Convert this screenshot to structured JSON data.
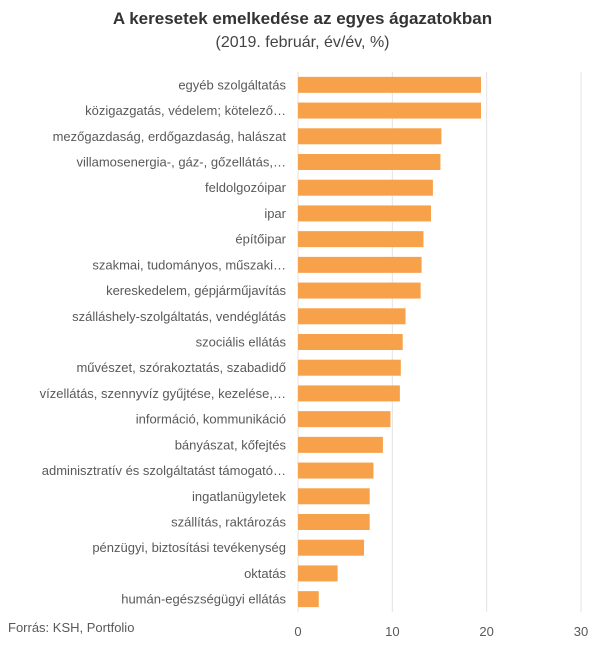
{
  "header": {
    "title": "A keresetek emelkedése az egyes ágazatokban",
    "subtitle": "(2019. február, év/év, %)"
  },
  "footer": {
    "source": "Forrás: KSH, Portfolio"
  },
  "colors": {
    "bar": "#F7A14A",
    "grid": "#E3E3E3",
    "text": "#595959"
  },
  "chart_data": {
    "type": "bar",
    "orientation": "horizontal",
    "title": "A keresetek emelkedése az egyes ágazatokban",
    "subtitle": "(2019. február, év/év, %)",
    "xlabel": "",
    "ylabel": "",
    "xlim": [
      0,
      30
    ],
    "xticks": [
      0,
      10,
      20,
      30
    ],
    "grid": true,
    "legend": "none",
    "categories": [
      "egyéb szolgáltatás",
      "közigazgatás, védelem; kötelező…",
      "mezőgazdaság, erdőgazdaság, halászat",
      "villamosenergia-, gáz-, gőzellátás,…",
      "feldolgozóipar",
      "ipar",
      "építőipar",
      "szakmai, tudományos, műszaki…",
      "kereskedelem, gépjárműjavítás",
      "szálláshely-szolgáltatás, vendéglátás",
      "szociális ellátás",
      "művészet, szórakoztatás, szabadidő",
      "vízellátás, szennyvíz gyűjtése, kezelése,…",
      "információ, kommunikáció",
      "bányászat, kőfejtés",
      "adminisztratív és szolgáltatást támogató…",
      "ingatlanügyletek",
      "szállítás, raktározás",
      "pénzügyi, biztosítási tevékenység",
      "oktatás",
      "humán-egészségügyi ellátás"
    ],
    "values": [
      19.4,
      19.4,
      15.2,
      15.1,
      14.3,
      14.1,
      13.3,
      13.1,
      13.0,
      11.4,
      11.1,
      10.9,
      10.8,
      9.8,
      9.0,
      8.0,
      7.6,
      7.6,
      7.0,
      4.2,
      2.2
    ]
  }
}
